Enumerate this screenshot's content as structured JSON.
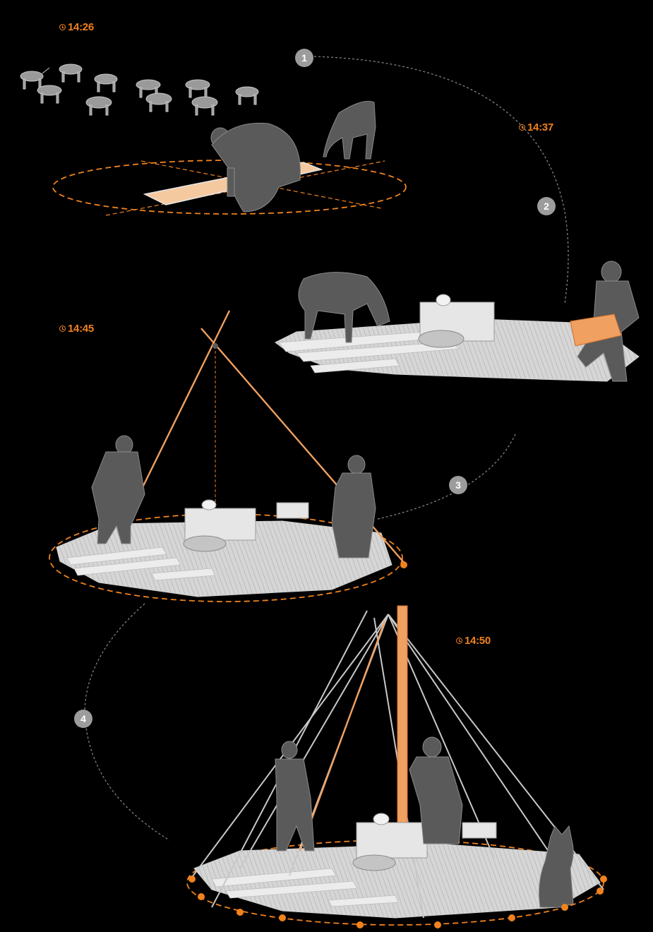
{
  "stages": [
    {
      "step": "1",
      "time": "14:26"
    },
    {
      "step": "2",
      "time": "14:37"
    },
    {
      "step": "3",
      "time": "14:45"
    },
    {
      "step": "4",
      "time": "14:50"
    }
  ],
  "colors": {
    "background": "#000000",
    "accent": "#f0821e",
    "figure": "#5a5a5a",
    "floor": "#e4e4e4",
    "badge": "#9c9c9c",
    "connector": "#8a8a8a"
  },
  "icons": [
    "clock-icon"
  ]
}
